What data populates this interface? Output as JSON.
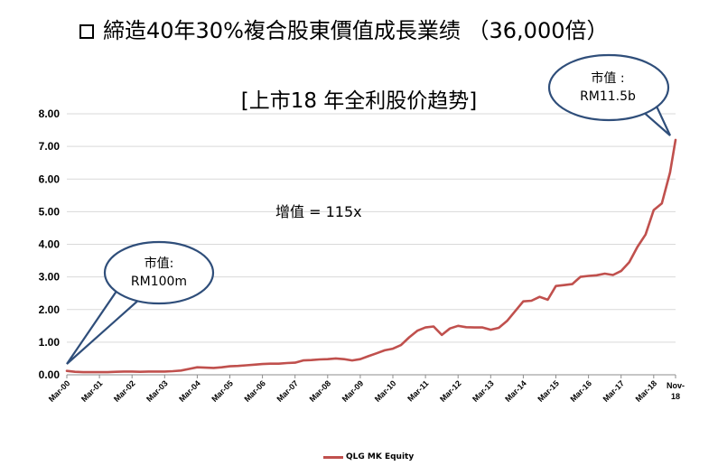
{
  "heading": {
    "bullet_icon": "square-bullet-icon",
    "text": "締造40年30%複合股東價值成長業绩 （36,000倍）"
  },
  "chart_data": {
    "type": "line",
    "title": "[上市18 年全利股价趋势]",
    "xlabel": "",
    "ylabel": "",
    "ylim": [
      0,
      8
    ],
    "yticks": [
      "0.00",
      "1.00",
      "2.00",
      "3.00",
      "4.00",
      "5.00",
      "6.00",
      "7.00",
      "8.00"
    ],
    "xticks": [
      "Mar-00",
      "Mar-01",
      "Mar-02",
      "Mar-03",
      "Mar-04",
      "Mar-05",
      "Mar-06",
      "Mar-07",
      "Mar-08",
      "Mar-09",
      "Mar-10",
      "Mar-11",
      "Mar-12",
      "Mar-13",
      "Mar-14",
      "Mar-15",
      "Mar-16",
      "Mar-17",
      "Mar-18",
      "Nov-18"
    ],
    "grid": true,
    "legend_position": "bottom",
    "series": [
      {
        "name": "QLG MK Equity",
        "color": "#C0504D",
        "x": [
          0,
          0.25,
          0.5,
          0.75,
          1,
          1.25,
          1.5,
          1.75,
          2,
          2.25,
          2.5,
          2.75,
          3,
          3.25,
          3.5,
          3.75,
          4,
          4.25,
          4.5,
          4.75,
          5,
          5.25,
          5.5,
          5.75,
          6,
          6.25,
          6.5,
          6.75,
          7,
          7.25,
          7.5,
          7.75,
          8,
          8.25,
          8.5,
          8.75,
          9,
          9.25,
          9.5,
          9.75,
          10,
          10.25,
          10.5,
          10.75,
          11,
          11.25,
          11.5,
          11.75,
          12,
          12.25,
          12.5,
          12.75,
          13,
          13.25,
          13.5,
          13.75,
          14,
          14.25,
          14.5,
          14.75,
          15,
          15.25,
          15.5,
          15.75,
          16,
          16.25,
          16.5,
          16.75,
          17,
          17.25,
          17.5,
          17.75,
          18,
          18.25,
          18.5,
          18.67
        ],
        "values": [
          0.12,
          0.09,
          0.08,
          0.08,
          0.08,
          0.08,
          0.09,
          0.1,
          0.1,
          0.09,
          0.1,
          0.1,
          0.1,
          0.11,
          0.13,
          0.18,
          0.23,
          0.22,
          0.21,
          0.23,
          0.26,
          0.27,
          0.29,
          0.31,
          0.33,
          0.34,
          0.34,
          0.36,
          0.37,
          0.44,
          0.45,
          0.47,
          0.48,
          0.5,
          0.48,
          0.44,
          0.48,
          0.57,
          0.66,
          0.75,
          0.8,
          0.91,
          1.15,
          1.35,
          1.45,
          1.48,
          1.22,
          1.42,
          1.5,
          1.46,
          1.45,
          1.45,
          1.38,
          1.44,
          1.65,
          1.95,
          2.25,
          2.27,
          2.39,
          2.3,
          2.72,
          2.75,
          2.78,
          3.0,
          3.03,
          3.05,
          3.1,
          3.06,
          3.18,
          3.45,
          3.92,
          4.3,
          5.05,
          5.25,
          6.2,
          7.2
        ]
      }
    ]
  },
  "annotations": {
    "gain": "增值 = 115x",
    "callout_start": {
      "line1": "市值:",
      "line2": "RM100m"
    },
    "callout_end": {
      "line1": "市值 :",
      "line2": "RM11.5b"
    }
  },
  "colors": {
    "series": "#C0504D",
    "callout_border": "#2F4E7A",
    "grid": "#D9D9D9"
  }
}
